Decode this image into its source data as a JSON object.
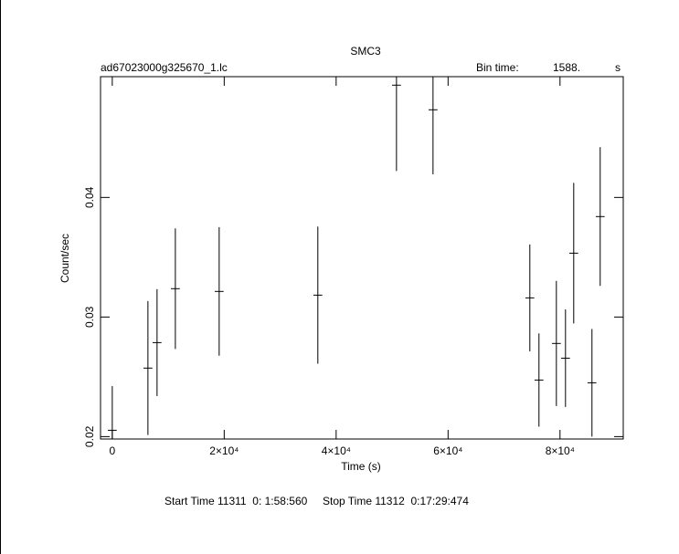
{
  "chart_data": {
    "type": "errorbar",
    "title": "SMC3",
    "subtitle_left": "ad67023000g325670_1.lc",
    "bin_label": "Bin time:",
    "bin_value": "1588.",
    "bin_unit": "s",
    "xlabel": "Time (s)",
    "ylabel": "Count/sec",
    "footer": "Start Time 11311  0: 1:58:560     Stop Time 11312  0:17:29:474",
    "x": [
      0,
      6370,
      8000,
      11270,
      19100,
      36730,
      50780,
      57310,
      74610,
      76240,
      79350,
      80980,
      82450,
      85710,
      87180
    ],
    "series": [
      {
        "color": "#000000",
        "values": [
          0.02053,
          0.02573,
          0.02786,
          0.03237,
          0.03214,
          0.03183,
          0.04939,
          0.04733,
          0.0316,
          0.02473,
          0.02779,
          0.02656,
          0.03534,
          0.0245,
          0.0384
        ],
        "errors": [
          0.0037,
          0.0056,
          0.00447,
          0.00504,
          0.00538,
          0.00573,
          0.00718,
          0.0054,
          0.00447,
          0.0039,
          0.00523,
          0.00408,
          0.00588,
          0.0045,
          0.0058
        ],
        "xerr": 794
      }
    ],
    "xlim": [
      -2100,
      91300
    ],
    "ylim": [
      0.0198,
      0.0501
    ],
    "xticks": [
      0,
      {
        "value": 20000,
        "label": "2×10⁴"
      },
      {
        "value": 40000,
        "label": "4×10⁴"
      },
      {
        "value": 60000,
        "label": "6×10⁴"
      },
      {
        "value": 80000,
        "label": "8×10⁴"
      }
    ],
    "yticks": [
      0.02,
      0.03,
      0.04
    ]
  }
}
